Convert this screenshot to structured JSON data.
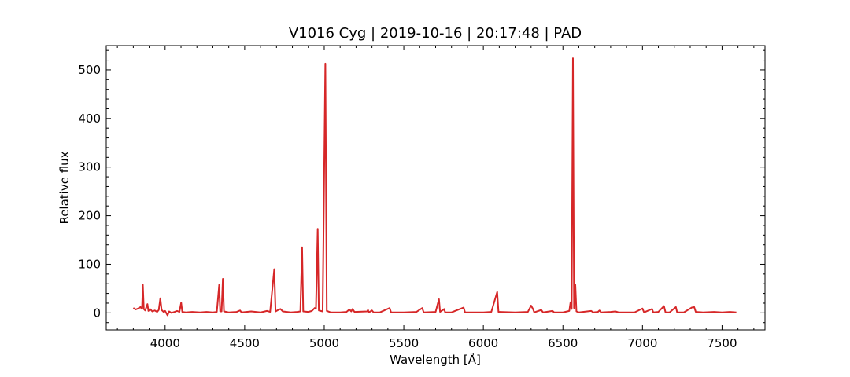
{
  "chart_data": {
    "type": "line",
    "title": "V1016 Cyg | 2019-10-16 | 20:17:48 | PAD",
    "xlabel": "Wavelength [Å]",
    "ylabel": "Relative flux",
    "xlim": [
      3630,
      7770
    ],
    "ylim": [
      -35,
      550
    ],
    "xticks": [
      4000,
      4500,
      5000,
      5500,
      6000,
      6500,
      7000,
      7500
    ],
    "yticks": [
      0,
      100,
      200,
      300,
      400,
      500
    ],
    "grid": false,
    "legend": "none",
    "series": [
      {
        "color": "#d62728",
        "points": [
          [
            3800,
            10
          ],
          [
            3815,
            7
          ],
          [
            3830,
            9
          ],
          [
            3845,
            12
          ],
          [
            3855,
            8
          ],
          [
            3860,
            58
          ],
          [
            3866,
            8
          ],
          [
            3875,
            5
          ],
          [
            3889,
            18
          ],
          [
            3895,
            4
          ],
          [
            3905,
            8
          ],
          [
            3920,
            3
          ],
          [
            3935,
            5
          ],
          [
            3950,
            2
          ],
          [
            3960,
            6
          ],
          [
            3970,
            30
          ],
          [
            3978,
            6
          ],
          [
            3990,
            2
          ],
          [
            4000,
            4
          ],
          [
            4015,
            -5
          ],
          [
            4025,
            3
          ],
          [
            4040,
            0
          ],
          [
            4060,
            2
          ],
          [
            4075,
            4
          ],
          [
            4090,
            2
          ],
          [
            4101,
            21
          ],
          [
            4108,
            2
          ],
          [
            4130,
            1
          ],
          [
            4170,
            2
          ],
          [
            4220,
            1
          ],
          [
            4260,
            2
          ],
          [
            4300,
            1
          ],
          [
            4325,
            2
          ],
          [
            4340,
            58
          ],
          [
            4346,
            3
          ],
          [
            4355,
            3
          ],
          [
            4363,
            70
          ],
          [
            4370,
            3
          ],
          [
            4400,
            1
          ],
          [
            4450,
            2
          ],
          [
            4471,
            5
          ],
          [
            4480,
            1
          ],
          [
            4541,
            3
          ],
          [
            4600,
            1
          ],
          [
            4640,
            4
          ],
          [
            4660,
            2
          ],
          [
            4686,
            90
          ],
          [
            4694,
            3
          ],
          [
            4711,
            6
          ],
          [
            4725,
            8
          ],
          [
            4740,
            3
          ],
          [
            4790,
            1
          ],
          [
            4830,
            2
          ],
          [
            4850,
            3
          ],
          [
            4861,
            135
          ],
          [
            4868,
            3
          ],
          [
            4900,
            2
          ],
          [
            4922,
            4
          ],
          [
            4940,
            10
          ],
          [
            4948,
            8
          ],
          [
            4959,
            173
          ],
          [
            4966,
            5
          ],
          [
            4990,
            3
          ],
          [
            5007,
            513
          ],
          [
            5016,
            4
          ],
          [
            5040,
            1
          ],
          [
            5100,
            1
          ],
          [
            5140,
            2
          ],
          [
            5158,
            7
          ],
          [
            5170,
            3
          ],
          [
            5178,
            8
          ],
          [
            5190,
            2
          ],
          [
            5270,
            3
          ],
          [
            5275,
            6
          ],
          [
            5280,
            1
          ],
          [
            5300,
            5
          ],
          [
            5310,
            1
          ],
          [
            5350,
            1
          ],
          [
            5411,
            10
          ],
          [
            5420,
            1
          ],
          [
            5500,
            1
          ],
          [
            5580,
            2
          ],
          [
            5616,
            10
          ],
          [
            5625,
            1
          ],
          [
            5700,
            2
          ],
          [
            5721,
            28
          ],
          [
            5728,
            2
          ],
          [
            5754,
            8
          ],
          [
            5760,
            1
          ],
          [
            5800,
            1
          ],
          [
            5876,
            11
          ],
          [
            5885,
            1
          ],
          [
            5950,
            1
          ],
          [
            6000,
            1
          ],
          [
            6050,
            2
          ],
          [
            6087,
            43
          ],
          [
            6095,
            2
          ],
          [
            6200,
            1
          ],
          [
            6280,
            2
          ],
          [
            6300,
            15
          ],
          [
            6312,
            8
          ],
          [
            6320,
            1
          ],
          [
            6364,
            6
          ],
          [
            6375,
            1
          ],
          [
            6435,
            4
          ],
          [
            6445,
            1
          ],
          [
            6500,
            1
          ],
          [
            6540,
            4
          ],
          [
            6548,
            22
          ],
          [
            6555,
            8
          ],
          [
            6563,
            524
          ],
          [
            6570,
            10
          ],
          [
            6578,
            58
          ],
          [
            6585,
            3
          ],
          [
            6600,
            1
          ],
          [
            6678,
            4
          ],
          [
            6690,
            1
          ],
          [
            6720,
            2
          ],
          [
            6730,
            5
          ],
          [
            6740,
            1
          ],
          [
            6800,
            2
          ],
          [
            6830,
            3
          ],
          [
            6850,
            1
          ],
          [
            6950,
            1
          ],
          [
            7000,
            9
          ],
          [
            7010,
            1
          ],
          [
            7060,
            8
          ],
          [
            7068,
            1
          ],
          [
            7100,
            2
          ],
          [
            7135,
            14
          ],
          [
            7145,
            1
          ],
          [
            7170,
            1
          ],
          [
            7210,
            12
          ],
          [
            7218,
            1
          ],
          [
            7260,
            1
          ],
          [
            7310,
            11
          ],
          [
            7325,
            12
          ],
          [
            7335,
            2
          ],
          [
            7380,
            1
          ],
          [
            7450,
            2
          ],
          [
            7500,
            1
          ],
          [
            7550,
            2
          ],
          [
            7590,
            1
          ]
        ]
      }
    ]
  }
}
